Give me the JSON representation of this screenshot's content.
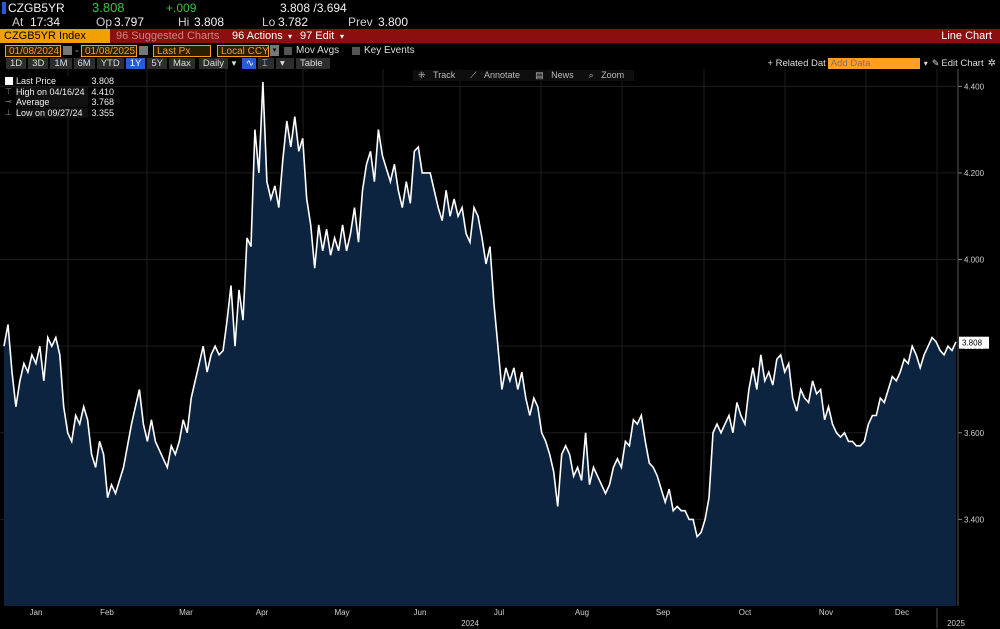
{
  "quote": {
    "ticker": "CZGB5YR",
    "last": "3.808",
    "change": "+.009",
    "bid_ask": "3.808 /3.694",
    "at_label": "At",
    "at_time": "17:34",
    "op_label": "Op",
    "op": "3.797",
    "hi_label": "Hi",
    "hi": "3.808",
    "lo_label": "Lo",
    "lo": "3.782",
    "prev_label": "Prev",
    "prev": "3.800"
  },
  "title_bar": {
    "security": "CZGB5YR Index",
    "suggested": "96 Suggested Charts",
    "actions": "96 Actions",
    "edit": "97 Edit",
    "chart_type": "Line Chart"
  },
  "toolbar": {
    "start_date": "01/08/2024",
    "end_date": "01/08/2025",
    "field": "Last Px",
    "currency": "Local CCY",
    "mov_avgs": "Mov Avgs",
    "key_events": "Key Events",
    "ranges": [
      "1D",
      "3D",
      "1M",
      "6M",
      "YTD",
      "1Y",
      "5Y",
      "Max"
    ],
    "selected_range": "1Y",
    "frequency": "Daily",
    "table": "Table",
    "related": "+ Related Dat",
    "add_data_placeholder": "Add Data",
    "edit_chart": "Edit Chart"
  },
  "center_tools": [
    "Track",
    "Annotate",
    "News",
    "Zoom"
  ],
  "legend": [
    {
      "label": "Last Price",
      "value": "3.808"
    },
    {
      "label": "High on 04/16/24",
      "value": "4.410"
    },
    {
      "label": "Average",
      "value": "3.768"
    },
    {
      "label": "Low on 09/27/24",
      "value": "3.355"
    }
  ],
  "colors": {
    "line": "#ffffff",
    "fill": "#0d2440",
    "grid": "#1e1e1e",
    "accent": "#ff9c1a",
    "title_bar": "#8b0f0f",
    "up": "#36c444"
  },
  "chart_data": {
    "type": "area",
    "x_tick_labels": [
      "Jan",
      "Feb",
      "Mar",
      "Apr",
      "May",
      "Jun",
      "Jul",
      "Aug",
      "Sep",
      "Oct",
      "Nov",
      "Dec"
    ],
    "year_labels": [
      "2024",
      "2025"
    ],
    "y_tick_labels": [
      "4.400",
      "4.200",
      "4.000",
      "3.800",
      "3.600",
      "3.400"
    ],
    "ylim": [
      3.2,
      4.44
    ],
    "last_value_label": "3.808",
    "grid": true,
    "series": [
      {
        "values": [
          3.8,
          3.85,
          3.74,
          3.66,
          3.72,
          3.76,
          3.74,
          3.78,
          3.76,
          3.8,
          3.72,
          3.82,
          3.8,
          3.82,
          3.78,
          3.66,
          3.6,
          3.58,
          3.64,
          3.62,
          3.66,
          3.63,
          3.55,
          3.52,
          3.58,
          3.55,
          3.45,
          3.48,
          3.46,
          3.49,
          3.52,
          3.57,
          3.62,
          3.66,
          3.7,
          3.62,
          3.58,
          3.63,
          3.58,
          3.56,
          3.54,
          3.52,
          3.57,
          3.55,
          3.58,
          3.63,
          3.6,
          3.68,
          3.72,
          3.76,
          3.8,
          3.74,
          3.78,
          3.8,
          3.78,
          3.79,
          3.86,
          3.94,
          3.8,
          3.93,
          3.86,
          4.05,
          4.03,
          4.3,
          4.2,
          4.41,
          4.18,
          4.14,
          4.17,
          4.12,
          4.23,
          4.32,
          4.26,
          4.33,
          4.25,
          4.28,
          4.14,
          4.08,
          3.98,
          4.08,
          4.02,
          4.07,
          4.01,
          4.05,
          4.02,
          4.08,
          4.02,
          4.06,
          4.12,
          4.04,
          4.16,
          4.22,
          4.25,
          4.18,
          4.3,
          4.24,
          4.21,
          4.18,
          4.22,
          4.16,
          4.12,
          4.18,
          4.13,
          4.25,
          4.26,
          4.2,
          4.2,
          4.2,
          4.16,
          4.12,
          4.09,
          4.16,
          4.1,
          4.14,
          4.1,
          4.12,
          4.06,
          4.04,
          4.12,
          4.1,
          4.05,
          3.99,
          4.03,
          3.9,
          3.8,
          3.7,
          3.75,
          3.72,
          3.75,
          3.7,
          3.74,
          3.68,
          3.64,
          3.68,
          3.66,
          3.6,
          3.58,
          3.55,
          3.51,
          3.43,
          3.55,
          3.57,
          3.55,
          3.5,
          3.52,
          3.49,
          3.6,
          3.48,
          3.52,
          3.5,
          3.48,
          3.46,
          3.48,
          3.52,
          3.54,
          3.52,
          3.58,
          3.57,
          3.63,
          3.62,
          3.64,
          3.58,
          3.53,
          3.52,
          3.5,
          3.47,
          3.44,
          3.47,
          3.42,
          3.43,
          3.42,
          3.42,
          3.4,
          3.4,
          3.36,
          3.37,
          3.4,
          3.45,
          3.6,
          3.62,
          3.6,
          3.62,
          3.64,
          3.6,
          3.67,
          3.64,
          3.62,
          3.7,
          3.75,
          3.7,
          3.78,
          3.72,
          3.74,
          3.71,
          3.77,
          3.78,
          3.74,
          3.76,
          3.68,
          3.65,
          3.7,
          3.68,
          3.67,
          3.72,
          3.69,
          3.7,
          3.63,
          3.66,
          3.62,
          3.6,
          3.59,
          3.6,
          3.58,
          3.58,
          3.57,
          3.57,
          3.58,
          3.62,
          3.64,
          3.64,
          3.68,
          3.67,
          3.7,
          3.73,
          3.72,
          3.74,
          3.77,
          3.76,
          3.8,
          3.78,
          3.75,
          3.78,
          3.8,
          3.82,
          3.81,
          3.79,
          3.78,
          3.8,
          3.79,
          3.81
        ]
      }
    ]
  }
}
